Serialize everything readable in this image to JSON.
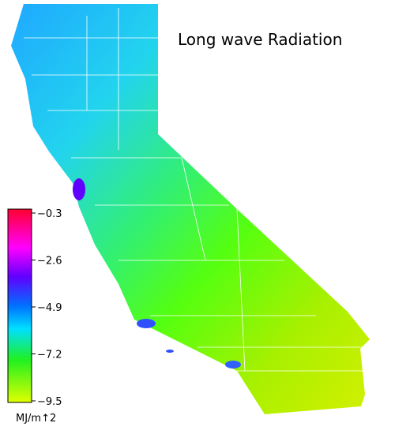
{
  "title": "Long wave Radiation",
  "colorbar": {
    "ticks": [
      {
        "value": -0.3,
        "label": "−0.3"
      },
      {
        "value": -2.6,
        "label": "−2.6"
      },
      {
        "value": -4.9,
        "label": "−4.9"
      },
      {
        "value": -7.2,
        "label": "−7.2"
      },
      {
        "value": -9.5,
        "label": "−9.5"
      }
    ],
    "unit": "MJ/m↑2"
  }
}
